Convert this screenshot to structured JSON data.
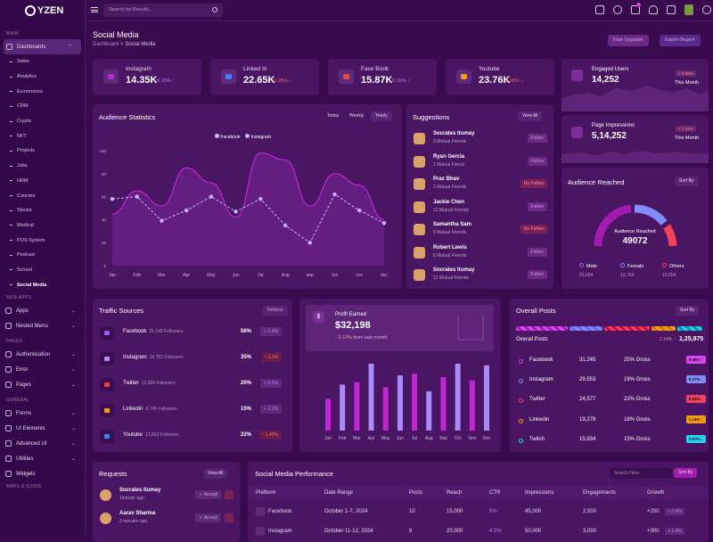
{
  "brand": "YZEN",
  "search_placeholder": "Search for Results...",
  "sidebar": {
    "sec_main": "MAIN",
    "dashboards": "Dashboards",
    "subs": [
      "Sales",
      "Analytics",
      "Ecommerce",
      "CRM",
      "Crypto",
      "NFT",
      "Projects",
      "Jobs",
      "HRM",
      "Courses",
      "Stocks",
      "Medical",
      "POS System",
      "Podcast",
      "School",
      "Social Media"
    ],
    "sec_web": "WEB APPS",
    "apps": "Apps",
    "nested": "Nested Menu",
    "sec_pages": "PAGES",
    "auth": "Authentication",
    "error": "Error",
    "pages": "Pages",
    "sec_general": "GENERAL",
    "forms": "Forms",
    "ui": "UI Elements",
    "advanced": "Advanced UI",
    "utilities": "Utilities",
    "widgets": "Widgets",
    "sec_maps": "MAPS & ICONS"
  },
  "header": {
    "title": "Social Media",
    "crumb1": "Dashboard",
    "crumb_sep": ">",
    "crumb2": "Social Media",
    "plan": "Plan Upgrade",
    "export": "Export Report",
    "cart_badge": "5"
  },
  "stats": [
    {
      "name": "Instagram",
      "value": "14.35K",
      "change": "0.15%",
      "arrow": "↑",
      "color": "#c026d3"
    },
    {
      "name": "Linked In",
      "value": "22.65K",
      "change": "1.25%",
      "arrow": "↓",
      "color": "#3b82f6"
    },
    {
      "name": "Face Book",
      "value": "15.87K",
      "change": "0.15%",
      "arrow": "↑",
      "color": "#ef4444"
    },
    {
      "name": "Youtube",
      "value": "23.76K",
      "change": "1.26%",
      "arrow": "↓",
      "color": "#f59e0b"
    }
  ],
  "engaged": {
    "name": "Engaged Users",
    "value": "14,252",
    "badge": "+ 0.56%",
    "period": "This Month"
  },
  "impressions": {
    "name": "Page Impressions",
    "value": "5,14,252",
    "badge": "+ 1.15%",
    "period": "This Month"
  },
  "audience": {
    "title": "Audience Statistics",
    "tabs": [
      "Today",
      "Weekly",
      "Yearly"
    ],
    "legend": [
      "Facebook",
      "Instagram"
    ]
  },
  "chart_data": [
    {
      "type": "line",
      "title": "Audience Statistics",
      "categories": [
        "Jan",
        "Feb",
        "Mar",
        "Apr",
        "May",
        "Jun",
        "Jul",
        "Aug",
        "sep",
        "oct",
        "nov",
        "dec"
      ],
      "yticks": [
        0,
        20,
        40,
        60,
        80,
        100
      ],
      "ylim": [
        0,
        100
      ],
      "series": [
        {
          "name": "Facebook",
          "values": [
            45,
            65,
            52,
            85,
            72,
            42,
            98,
            92,
            52,
            80,
            70,
            40
          ]
        },
        {
          "name": "Instagram",
          "values": [
            58,
            60,
            39,
            48,
            60,
            47,
            58,
            35,
            20,
            62,
            48,
            37
          ]
        }
      ]
    },
    {
      "type": "bar",
      "title": "Profit Earned",
      "categories": [
        "Jan",
        "Feb",
        "Mar",
        "Apr",
        "May",
        "Jun",
        "Jul",
        "Aug",
        "Sep",
        "Oct",
        "Nov",
        "Dec"
      ],
      "values": [
        38,
        55,
        58,
        80,
        52,
        66,
        68,
        47,
        64,
        80,
        60,
        78
      ]
    }
  ],
  "suggestions": {
    "title": "Suggestions",
    "view": "View All",
    "items": [
      {
        "name": "Socrates Itumay",
        "mutual": "3 Mutual Friends",
        "btn": "Follow",
        "un": false
      },
      {
        "name": "Ryan Gercia",
        "mutual": "1 Mutual Friend",
        "btn": "Follow",
        "un": false
      },
      {
        "name": "Prax Bhav",
        "mutual": "2 Mutual Friends",
        "btn": "Un Follow",
        "un": true
      },
      {
        "name": "Jackie Chen",
        "mutual": "12 Mutual Friends",
        "btn": "Follow",
        "un": false
      },
      {
        "name": "Samantha Sam",
        "mutual": "6 Mutual Friends",
        "btn": "Un Follow",
        "un": true
      },
      {
        "name": "Robert Lewis",
        "mutual": "8 Mutual Friends",
        "btn": "Follow",
        "un": false
      },
      {
        "name": "Socrates Itumay",
        "mutual": "12 Mutual Friends",
        "btn": "Follow",
        "un": false
      }
    ]
  },
  "reached": {
    "title": "Audience Reached",
    "sort": "Sort By",
    "label": "Audience Reached",
    "value": "49072",
    "legend": [
      {
        "name": "Male",
        "value": "22,664",
        "color": "#a855f7"
      },
      {
        "name": "Female",
        "value": "13,754",
        "color": "#818cf8"
      },
      {
        "name": "Others",
        "value": "12,654",
        "color": "#f43f5e"
      }
    ]
  },
  "traffic": {
    "title": "Traffic Sources",
    "btn": "Refresh",
    "items": [
      {
        "name": "Facebook",
        "followers": "25,145 Followers",
        "pct": "56%",
        "tag": "+ 2.4%",
        "up": true,
        "color": "#a855f7"
      },
      {
        "name": "Instagram",
        "followers": "19,762 Followers",
        "pct": "35%",
        "tag": "- 1.1%",
        "up": false,
        "color": "#c084fc"
      },
      {
        "name": "Twitter",
        "followers": "12,384 Followers",
        "pct": "20%",
        "tag": "+ 0.3%",
        "up": true,
        "color": "#ef4444"
      },
      {
        "name": "Linkedin",
        "followers": "8,745 Followers",
        "pct": "15%",
        "tag": "+ 2.1%",
        "up": true,
        "color": "#f59e0b"
      },
      {
        "name": "Youtube",
        "followers": "12,653 Followers",
        "pct": "22%",
        "tag": "- 1.45%",
        "up": false,
        "color": "#3b82f6"
      }
    ]
  },
  "profit": {
    "title": "Profit Earned",
    "value": "$32,198",
    "change": "- 2.10%",
    "note": "from last month"
  },
  "overall": {
    "title": "Overall Posts",
    "sort": "Sort By",
    "label": "Overall Posts",
    "change": "2.14% ↑",
    "total": "1,25,875",
    "items": [
      {
        "name": "Facebook",
        "count": "31,245",
        "gross": "25% Gross",
        "tag": "0.45% ↑",
        "color": "#d946ef"
      },
      {
        "name": "Instagram",
        "count": "29,553",
        "gross": "16% Gross",
        "tag": "0.27% ↑",
        "color": "#818cf8"
      },
      {
        "name": "Twitter",
        "count": "24,577",
        "gross": "22% Gross",
        "tag": "0.43% ↓",
        "color": "#f43f5e"
      },
      {
        "name": "Linkedin",
        "count": "19,278",
        "gross": "18% Gross",
        "tag": "1.14% ↑",
        "color": "#f59e0b"
      },
      {
        "name": "Twitch",
        "count": "15,934",
        "gross": "15% Gross",
        "tag": "0.57% ↑",
        "color": "#22d3ee"
      }
    ]
  },
  "requests": {
    "title": "Requests",
    "view": "View All",
    "items": [
      {
        "name": "Socrates Itumay",
        "time": "1minute ago",
        "btn": "Accept"
      },
      {
        "name": "Aarav Sharma",
        "time": "2 minutes ago",
        "btn": "Accept"
      }
    ]
  },
  "performance": {
    "title": "Social Media Performance",
    "search": "Search Here",
    "sort": "Sort By",
    "headers": [
      "Platform",
      "Date Range",
      "Posts",
      "Reach",
      "CTR",
      "Impressions",
      "Engagements",
      "Growth"
    ],
    "rows": [
      {
        "platform": "Facebook",
        "date": "October 1-7, 2024",
        "posts": "10",
        "reach": "15,000",
        "ctr": "5%",
        "imp": "45,000",
        "eng": "2,500",
        "growth": "+200",
        "tag": "+ 2.4%"
      },
      {
        "platform": "Instagram",
        "date": "October 11-12, 2024",
        "posts": "8",
        "reach": "20,000",
        "ctr": "4.5%",
        "imp": "50,000",
        "eng": "3,000",
        "growth": "+300",
        "tag": "+ 1.4%"
      }
    ]
  }
}
